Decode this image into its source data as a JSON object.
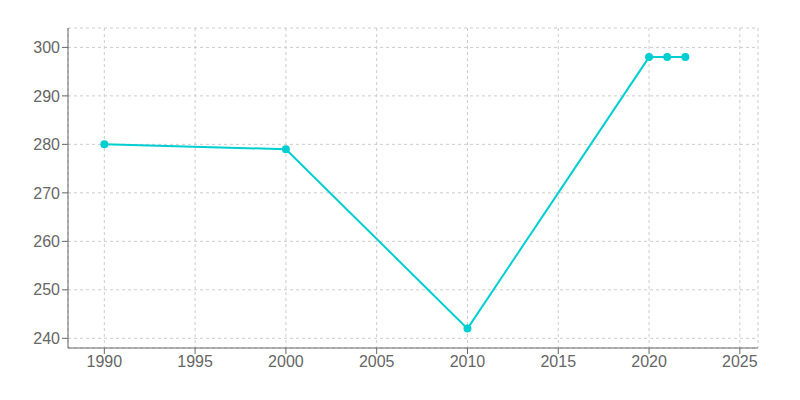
{
  "chart_data": {
    "type": "line",
    "x": [
      1990,
      2000,
      2010,
      2020,
      2021,
      2022
    ],
    "values": [
      280,
      279,
      242,
      298,
      298,
      298
    ],
    "color": "#00CED1",
    "marker": "circle",
    "xlim": [
      1988,
      2026
    ],
    "xticks": [
      1990,
      1995,
      2000,
      2005,
      2010,
      2015,
      2020,
      2025
    ],
    "ylim": [
      238,
      304
    ],
    "yticks": [
      240,
      250,
      260,
      270,
      280,
      290,
      300
    ],
    "grid": true
  }
}
